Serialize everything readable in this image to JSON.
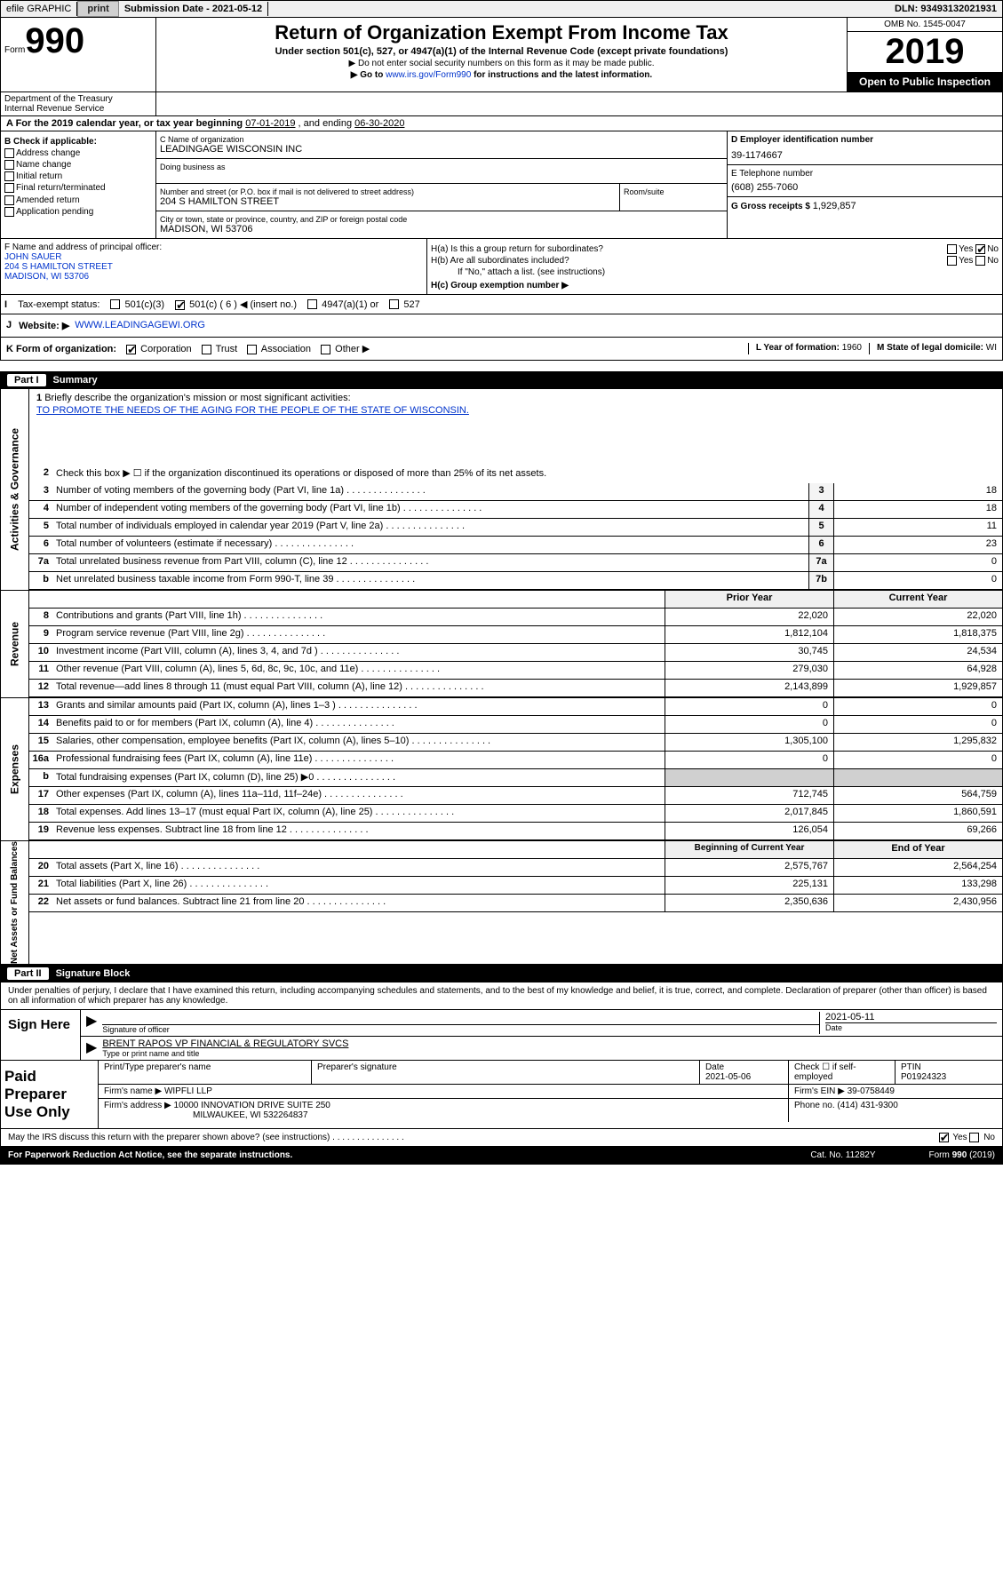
{
  "topbar": {
    "efile": "efile GRAPHIC",
    "print": "print",
    "sub_label": "Submission Date - ",
    "sub_date": "2021-05-12",
    "dln_label": "DLN: ",
    "dln": "93493132021931"
  },
  "header": {
    "form_prefix": "Form",
    "form_num": "990",
    "title": "Return of Organization Exempt From Income Tax",
    "subtitle": "Under section 501(c), 527, or 4947(a)(1) of the Internal Revenue Code (except private foundations)",
    "note1": "▶ Do not enter social security numbers on this form as it may be made public.",
    "note2_pre": "▶ Go to ",
    "note2_link": "www.irs.gov/Form990",
    "note2_post": " for instructions and the latest information.",
    "omb": "OMB No. 1545-0047",
    "year": "2019",
    "otp": "Open to Public Inspection",
    "dept": "Department of the Treasury\nInternal Revenue Service"
  },
  "period": {
    "text": "A For the 2019 calendar year, or tax year beginning ",
    "begin": "07-01-2019",
    "mid": " , and ending ",
    "end": "06-30-2020"
  },
  "boxB": {
    "label": "B Check if applicable:",
    "items": [
      "Address change",
      "Name change",
      "Initial return",
      "Final return/terminated",
      "Amended return",
      "Application pending"
    ]
  },
  "boxC": {
    "name_lbl": "C Name of organization",
    "name": "LEADINGAGE WISCONSIN INC",
    "dba_lbl": "Doing business as",
    "dba": "",
    "addr_lbl": "Number and street (or P.O. box if mail is not delivered to street address)",
    "addr": "204 S HAMILTON STREET",
    "room_lbl": "Room/suite",
    "city_lbl": "City or town, state or province, country, and ZIP or foreign postal code",
    "city": "MADISON, WI 53706"
  },
  "boxD": {
    "lbl": "D Employer identification number",
    "val": "39-1174667"
  },
  "boxE": {
    "lbl": "E Telephone number",
    "val": "(608) 255-7060"
  },
  "boxG": {
    "lbl": "G Gross receipts $ ",
    "val": "1,929,857"
  },
  "boxF": {
    "lbl": "F Name and address of principal officer:",
    "name": "JOHN SAUER",
    "addr1": "204 S HAMILTON STREET",
    "addr2": "MADISON, WI  53706"
  },
  "boxH": {
    "ha": "H(a) Is this a group return for subordinates?",
    "hb": "H(b) Are all subordinates included?",
    "hb_note": "If \"No,\" attach a list. (see instructions)",
    "hc": "H(c) Group exemption number ▶",
    "yes": "Yes",
    "no": "No"
  },
  "tax": {
    "lbl": "Tax-exempt status:",
    "c3": "501(c)(3)",
    "c": "501(c) ( 6 ) ◀ (insert no.)",
    "a1": "4947(a)(1) or",
    "527": "527"
  },
  "web": {
    "j": "J",
    "lbl": "Website: ▶",
    "url": "WWW.LEADINGAGEWI.ORG"
  },
  "rowK": {
    "k": "K Form of organization:",
    "corp": "Corporation",
    "trust": "Trust",
    "assoc": "Association",
    "other": "Other ▶",
    "l_lbl": "L Year of formation: ",
    "l_val": "1960",
    "m_lbl": "M State of legal domicile: ",
    "m_val": "WI"
  },
  "part1": {
    "num": "Part I",
    "title": "Summary"
  },
  "mission": {
    "lbl": "Briefly describe the organization's mission or most significant activities:",
    "txt": "TO PROMOTE THE NEEDS OF THE AGING FOR THE PEOPLE OF THE STATE OF WISCONSIN."
  },
  "line2": "Check this box ▶ ☐ if the organization discontinued its operations or disposed of more than 25% of its net assets.",
  "lines_gov": [
    {
      "n": "3",
      "t": "Number of voting members of the governing body (Part VI, line 1a)",
      "b": "3",
      "v": "18"
    },
    {
      "n": "4",
      "t": "Number of independent voting members of the governing body (Part VI, line 1b)",
      "b": "4",
      "v": "18"
    },
    {
      "n": "5",
      "t": "Total number of individuals employed in calendar year 2019 (Part V, line 2a)",
      "b": "5",
      "v": "11"
    },
    {
      "n": "6",
      "t": "Total number of volunteers (estimate if necessary)",
      "b": "6",
      "v": "23"
    },
    {
      "n": "7a",
      "t": "Total unrelated business revenue from Part VIII, column (C), line 12",
      "b": "7a",
      "v": "0"
    },
    {
      "n": "b",
      "t": "Net unrelated business taxable income from Form 990-T, line 39",
      "b": "7b",
      "v": "0"
    }
  ],
  "col_hdr": {
    "py": "Prior Year",
    "cy": "Current Year"
  },
  "lines_rev": [
    {
      "n": "8",
      "t": "Contributions and grants (Part VIII, line 1h)",
      "py": "22,020",
      "cy": "22,020"
    },
    {
      "n": "9",
      "t": "Program service revenue (Part VIII, line 2g)",
      "py": "1,812,104",
      "cy": "1,818,375"
    },
    {
      "n": "10",
      "t": "Investment income (Part VIII, column (A), lines 3, 4, and 7d )",
      "py": "30,745",
      "cy": "24,534"
    },
    {
      "n": "11",
      "t": "Other revenue (Part VIII, column (A), lines 5, 6d, 8c, 9c, 10c, and 11e)",
      "py": "279,030",
      "cy": "64,928"
    },
    {
      "n": "12",
      "t": "Total revenue—add lines 8 through 11 (must equal Part VIII, column (A), line 12)",
      "py": "2,143,899",
      "cy": "1,929,857"
    }
  ],
  "lines_exp": [
    {
      "n": "13",
      "t": "Grants and similar amounts paid (Part IX, column (A), lines 1–3 )",
      "py": "0",
      "cy": "0"
    },
    {
      "n": "14",
      "t": "Benefits paid to or for members (Part IX, column (A), line 4)",
      "py": "0",
      "cy": "0"
    },
    {
      "n": "15",
      "t": "Salaries, other compensation, employee benefits (Part IX, column (A), lines 5–10)",
      "py": "1,305,100",
      "cy": "1,295,832"
    },
    {
      "n": "16a",
      "t": "Professional fundraising fees (Part IX, column (A), line 11e)",
      "py": "0",
      "cy": "0"
    },
    {
      "n": "b",
      "t": "Total fundraising expenses (Part IX, column (D), line 25) ▶0",
      "py": "",
      "cy": "",
      "shade": true
    },
    {
      "n": "17",
      "t": "Other expenses (Part IX, column (A), lines 11a–11d, 11f–24e)",
      "py": "712,745",
      "cy": "564,759"
    },
    {
      "n": "18",
      "t": "Total expenses. Add lines 13–17 (must equal Part IX, column (A), line 25)",
      "py": "2,017,845",
      "cy": "1,860,591"
    },
    {
      "n": "19",
      "t": "Revenue less expenses. Subtract line 18 from line 12",
      "py": "126,054",
      "cy": "69,266"
    }
  ],
  "col_hdr2": {
    "py": "Beginning of Current Year",
    "cy": "End of Year"
  },
  "lines_na": [
    {
      "n": "20",
      "t": "Total assets (Part X, line 16)",
      "py": "2,575,767",
      "cy": "2,564,254"
    },
    {
      "n": "21",
      "t": "Total liabilities (Part X, line 26)",
      "py": "225,131",
      "cy": "133,298"
    },
    {
      "n": "22",
      "t": "Net assets or fund balances. Subtract line 21 from line 20",
      "py": "2,350,636",
      "cy": "2,430,956"
    }
  ],
  "vtabs": {
    "gov": "Activities & Governance",
    "rev": "Revenue",
    "exp": "Expenses",
    "na": "Net Assets or Fund Balances"
  },
  "part2": {
    "num": "Part II",
    "title": "Signature Block"
  },
  "penalty": "Under penalties of perjury, I declare that I have examined this return, including accompanying schedules and statements, and to the best of my knowledge and belief, it is true, correct, and complete. Declaration of preparer (other than officer) is based on all information of which preparer has any knowledge.",
  "sign": {
    "here": "Sign Here",
    "sig_lbl": "Signature of officer",
    "date": "2021-05-11",
    "date_lbl": "Date",
    "name": "BRENT RAPOS VP FINANCIAL & REGULATORY SVCS",
    "name_lbl": "Type or print name and title"
  },
  "prep": {
    "title": "Paid Preparer Use Only",
    "h_name": "Print/Type preparer's name",
    "h_sig": "Preparer's signature",
    "h_date": "Date",
    "date": "2021-05-06",
    "check_lbl": "Check ☐ if self-employed",
    "ptin_lbl": "PTIN",
    "ptin": "P01924323",
    "firm_lbl": "Firm's name   ▶",
    "firm": "WIPFLI LLP",
    "ein_lbl": "Firm's EIN ▶",
    "ein": "39-0758449",
    "addr_lbl": "Firm's address ▶",
    "addr1": "10000 INNOVATION DRIVE SUITE 250",
    "addr2": "MILWAUKEE, WI  532264837",
    "phone_lbl": "Phone no. ",
    "phone": "(414) 431-9300"
  },
  "discuss": {
    "q": "May the IRS discuss this return with the preparer shown above? (see instructions)",
    "yes": "Yes",
    "no": "No"
  },
  "footer": {
    "pra": "For Paperwork Reduction Act Notice, see the separate instructions.",
    "cat": "Cat. No. 11282Y",
    "form": "Form 990 (2019)"
  }
}
